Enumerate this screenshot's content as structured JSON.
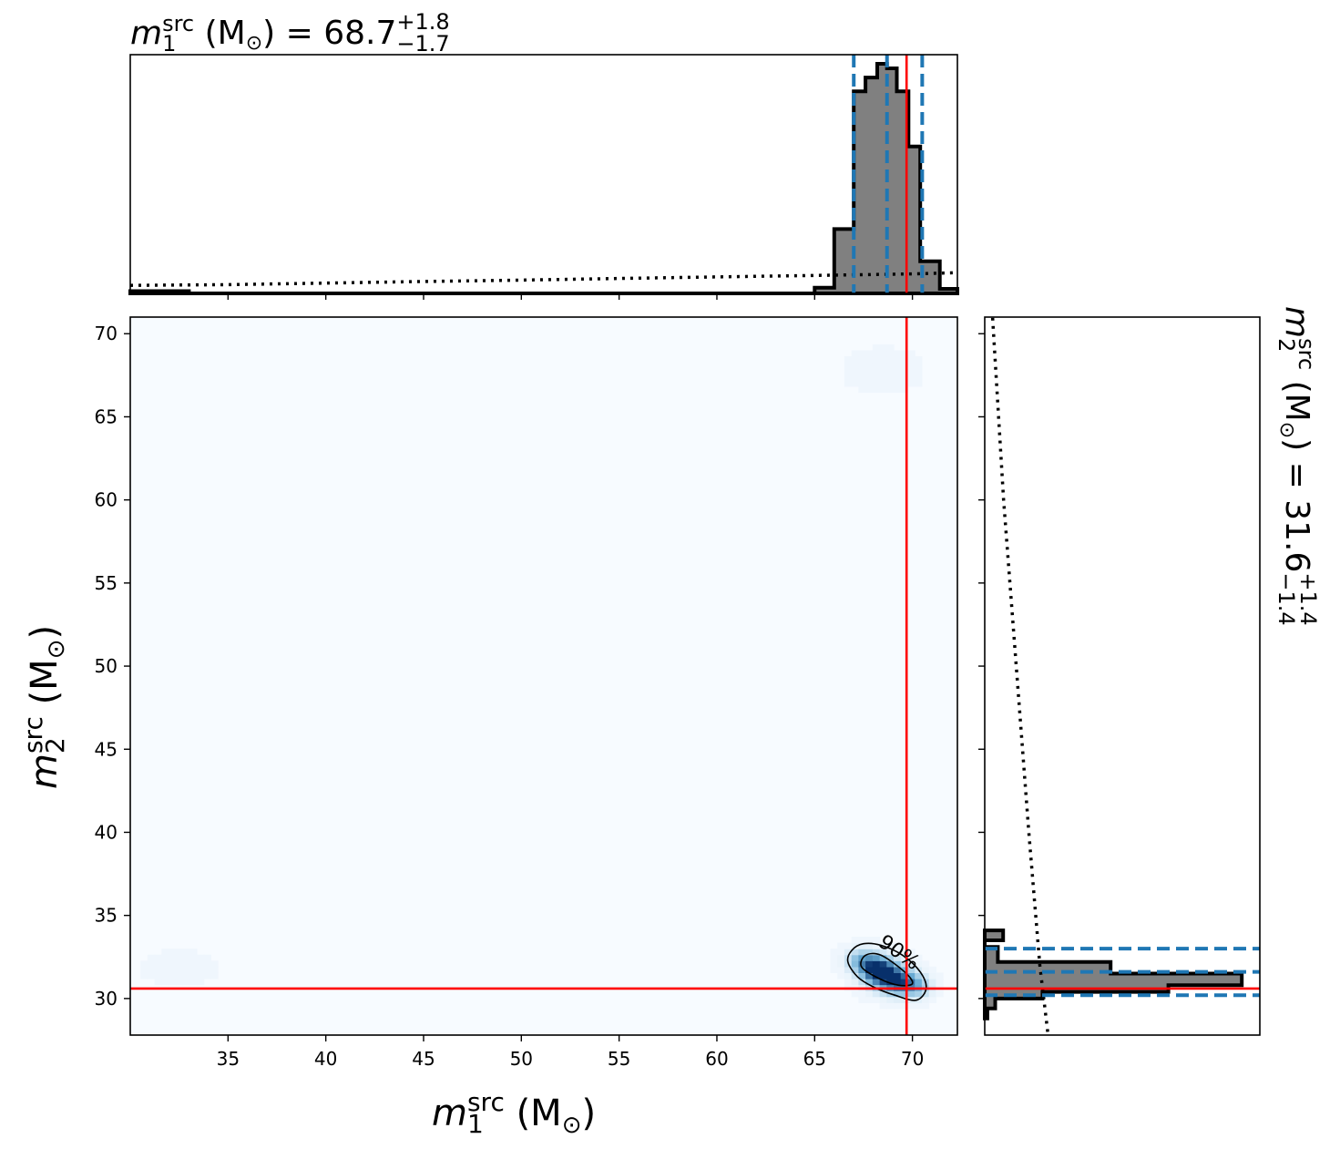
{
  "chart_data": {
    "type": "heatmap",
    "figure": "corner plot: 2D posterior density with marginal histograms",
    "x_param": {
      "label_base": "m",
      "label_sup": "src",
      "label_sub": "1",
      "label_unit": " (M",
      "label_sun": "⊙",
      "label_close": ")",
      "range": [
        30.0,
        72.3
      ],
      "ticks": [
        35,
        40,
        45,
        50,
        55,
        60,
        65,
        70
      ],
      "tick_labels": [
        "35",
        "40",
        "45",
        "50",
        "55",
        "60",
        "65",
        "70"
      ],
      "median": 68.7,
      "plus": 1.8,
      "minus": 1.7,
      "title_eq": " = 68.7",
      "title_plus": "+1.8",
      "title_minus": "−1.7",
      "injected": 69.7,
      "quantiles": [
        67.0,
        68.7,
        70.5
      ]
    },
    "y_param": {
      "label_base": "m",
      "label_sup": "src",
      "label_sub": "2",
      "label_unit": " (M",
      "label_sun": "⊙",
      "label_close": ")",
      "range": [
        27.8,
        71.0
      ],
      "ticks": [
        30,
        35,
        40,
        45,
        50,
        55,
        60,
        65,
        70
      ],
      "tick_labels": [
        "30",
        "35",
        "40",
        "45",
        "50",
        "55",
        "60",
        "65",
        "70"
      ],
      "median": 31.6,
      "plus": 1.4,
      "minus": 1.4,
      "title_eq": " = 31.6",
      "title_plus": "+1.4",
      "title_minus": "−1.4",
      "injected": 30.6,
      "quantiles": [
        30.2,
        31.6,
        33.0
      ]
    },
    "contour_label": "90%",
    "x_hist": {
      "edges": [
        30.0,
        31.0,
        32.0,
        33.0,
        34.0,
        65.0,
        66.0,
        67.0,
        67.6,
        68.2,
        68.7,
        69.2,
        69.8,
        70.4,
        71.4,
        72.3
      ],
      "counts": [
        0.01,
        0.01,
        0.01,
        0.0,
        0.0,
        0.025,
        0.28,
        0.88,
        0.94,
        1.0,
        0.98,
        0.88,
        0.64,
        0.14,
        0.02
      ]
    },
    "x_prior": {
      "x": [
        30.0,
        35.0,
        40.0,
        45.0,
        50.0,
        55.0,
        60.0,
        65.0,
        70.0,
        72.3
      ],
      "y": [
        0.035,
        0.038,
        0.045,
        0.052,
        0.058,
        0.065,
        0.072,
        0.078,
        0.085,
        0.09
      ]
    },
    "y_hist": {
      "edges": [
        28.8,
        29.4,
        30.0,
        30.4,
        30.8,
        31.5,
        32.2,
        33.1,
        33.5,
        34.1
      ],
      "counts": [
        0.01,
        0.04,
        0.22,
        0.7,
        0.98,
        0.48,
        0.05,
        0.0,
        0.07
      ]
    },
    "y_prior": {
      "y": [
        28.0,
        32.0,
        40.0,
        50.0,
        60.0,
        71.0
      ],
      "x": [
        0.04,
        0.035,
        0.028,
        0.02,
        0.012,
        0.005
      ]
    },
    "density_blobs": [
      {
        "x": 68.2,
        "y": 31.8,
        "sx": 0.55,
        "sy": 0.5,
        "w": 1.0
      },
      {
        "x": 68.9,
        "y": 31.3,
        "sx": 0.7,
        "sy": 0.55,
        "w": 0.75
      },
      {
        "x": 69.5,
        "y": 30.9,
        "sx": 0.6,
        "sy": 0.45,
        "w": 0.55
      },
      {
        "x": 67.4,
        "y": 32.3,
        "sx": 0.5,
        "sy": 0.45,
        "w": 0.45
      },
      {
        "x": 70.3,
        "y": 30.7,
        "sx": 0.45,
        "sy": 0.4,
        "w": 0.3
      },
      {
        "x": 68.5,
        "y": 67.8,
        "sx": 1.2,
        "sy": 0.8,
        "w": 0.02
      },
      {
        "x": 32.5,
        "y": 31.8,
        "sx": 1.2,
        "sy": 0.7,
        "w": 0.015
      }
    ],
    "contour_90": [
      [
        66.9,
        32.9
      ],
      [
        67.5,
        33.3
      ],
      [
        68.4,
        33.2
      ],
      [
        69.5,
        32.6
      ],
      [
        70.4,
        31.6
      ],
      [
        70.7,
        30.6
      ],
      [
        70.2,
        29.9
      ],
      [
        69.1,
        30.2
      ],
      [
        68.0,
        30.7
      ],
      [
        67.2,
        31.3
      ],
      [
        66.7,
        32.2
      ]
    ],
    "contour_50": [
      [
        67.6,
        32.6
      ],
      [
        68.4,
        32.6
      ],
      [
        69.6,
        31.6
      ],
      [
        70.0,
        30.9
      ],
      [
        69.3,
        30.8
      ],
      [
        68.3,
        31.2
      ],
      [
        67.4,
        31.9
      ]
    ],
    "colors": {
      "hist_fill": "#808080",
      "hist_edge": "#000000",
      "quantile_line": "#1f77b4",
      "truth_line": "#ff0000",
      "density_low": "#f7fbff",
      "density_high": "#08306b"
    }
  }
}
